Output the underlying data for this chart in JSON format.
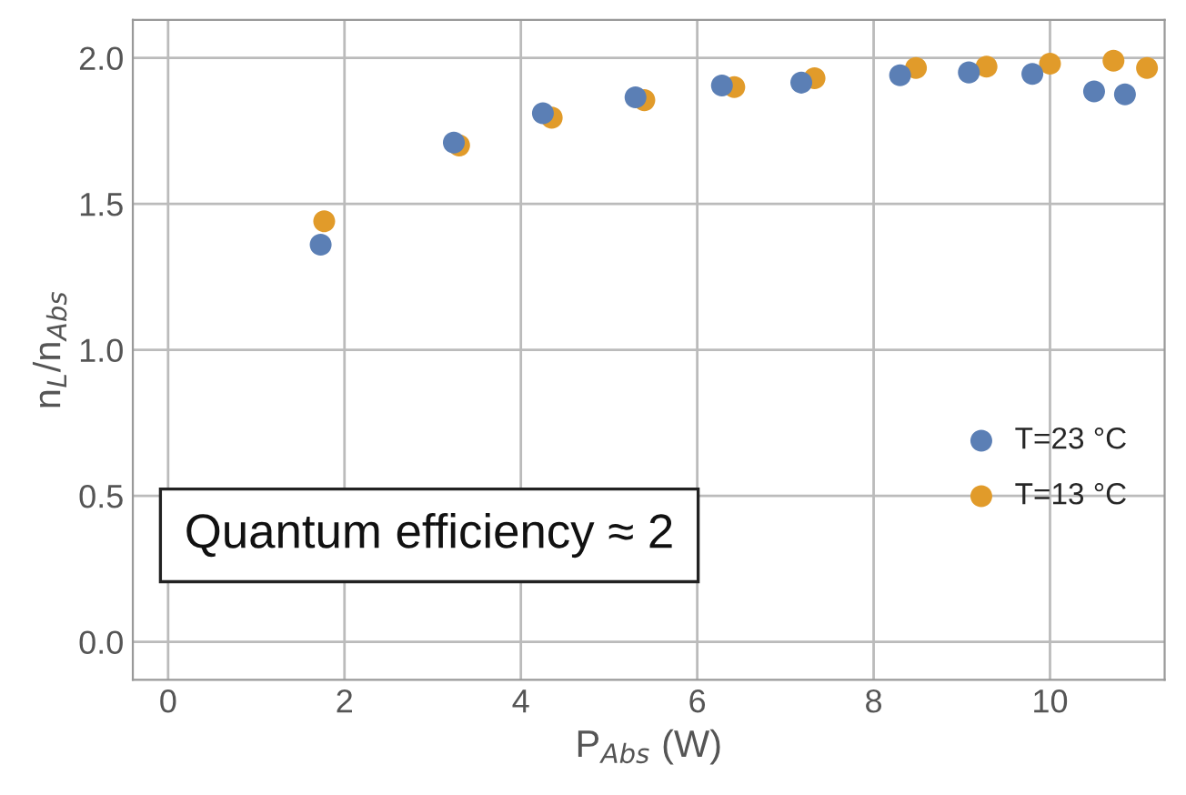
{
  "chart_data": {
    "type": "scatter",
    "xlabel": "P$_{Abs}$ (W)",
    "ylabel": "n$_{L}$/n$_{Abs}$",
    "xlim": [
      -0.4,
      11.3
    ],
    "ylim": [
      -0.13,
      2.13
    ],
    "xticks": [
      0,
      2,
      4,
      6,
      8,
      10
    ],
    "yticks": [
      {
        "value": 0,
        "label": "0.0"
      },
      0.5,
      {
        "value": 1,
        "label": "1.0"
      },
      1.5,
      {
        "value": 2,
        "label": "2.0"
      }
    ],
    "grid": true,
    "legend": "right",
    "marker": "circle",
    "annotations": [
      "Quantum efficiency ≈ 2"
    ],
    "series": [
      {
        "name": "T=23 °C",
        "color": "#5b7fb5",
        "x": [
          1.73,
          3.24,
          4.25,
          5.3,
          6.28,
          7.18,
          8.3,
          9.08,
          9.8,
          10.5,
          10.85
        ],
        "values": [
          1.36,
          1.71,
          1.81,
          1.865,
          1.905,
          1.915,
          1.94,
          1.95,
          1.945,
          1.885,
          1.875
        ]
      },
      {
        "name": "T=13 °C",
        "color": "#e19b2a",
        "x": [
          1.77,
          3.3,
          4.35,
          5.4,
          6.42,
          7.33,
          8.48,
          9.28,
          10.0,
          10.72,
          11.1
        ],
        "values": [
          1.44,
          1.7,
          1.795,
          1.855,
          1.9,
          1.93,
          1.965,
          1.97,
          1.98,
          1.99,
          1.965
        ]
      }
    ]
  }
}
